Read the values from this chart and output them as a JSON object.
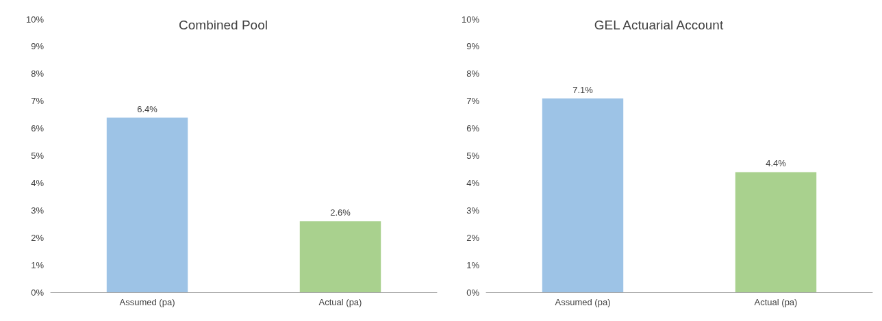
{
  "chart_data": [
    {
      "type": "bar",
      "title": "Combined Pool",
      "categories": [
        "Assumed (pa)",
        "Actual (pa)"
      ],
      "values": [
        6.4,
        2.6
      ],
      "colors": [
        "#9dc3e6",
        "#a9d18e"
      ],
      "value_labels": [
        "6.4%",
        "2.6%"
      ],
      "ylim": [
        0,
        10
      ],
      "yticks": [
        {
          "value": 0,
          "label": "0%"
        },
        {
          "value": 1,
          "label": "1%"
        },
        {
          "value": 2,
          "label": "2%"
        },
        {
          "value": 3,
          "label": "3%"
        },
        {
          "value": 4,
          "label": "4%"
        },
        {
          "value": 5,
          "label": "5%"
        },
        {
          "value": 6,
          "label": "6%"
        },
        {
          "value": 7,
          "label": "7%"
        },
        {
          "value": 8,
          "label": "8%"
        },
        {
          "value": 9,
          "label": "9%"
        },
        {
          "value": 10,
          "label": "10%"
        }
      ],
      "grid": false
    },
    {
      "type": "bar",
      "title": "GEL Actuarial Account",
      "categories": [
        "Assumed (pa)",
        "Actual (pa)"
      ],
      "values": [
        7.1,
        4.4
      ],
      "colors": [
        "#9dc3e6",
        "#a9d18e"
      ],
      "value_labels": [
        "7.1%",
        "4.4%"
      ],
      "ylim": [
        0,
        10
      ],
      "yticks": [
        {
          "value": 0,
          "label": "0%"
        },
        {
          "value": 1,
          "label": "1%"
        },
        {
          "value": 2,
          "label": "2%"
        },
        {
          "value": 3,
          "label": "3%"
        },
        {
          "value": 4,
          "label": "4%"
        },
        {
          "value": 5,
          "label": "5%"
        },
        {
          "value": 6,
          "label": "6%"
        },
        {
          "value": 7,
          "label": "7%"
        },
        {
          "value": 8,
          "label": "8%"
        },
        {
          "value": 9,
          "label": "9%"
        },
        {
          "value": 10,
          "label": "10%"
        }
      ],
      "grid": false
    }
  ]
}
